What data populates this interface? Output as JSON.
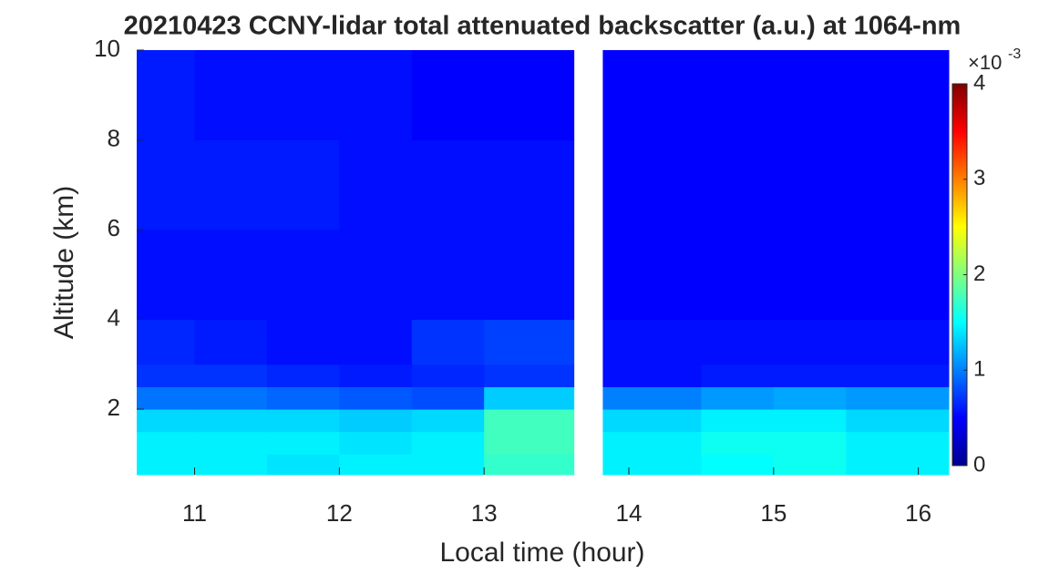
{
  "chart_data": {
    "type": "heatmap",
    "title": "20210423 CCNY-lidar total attenuated backscatter (a.u.) at 1064-nm",
    "xlabel": "Local time (hour)",
    "ylabel": "Altitude (km)",
    "xlim": [
      10.6,
      16.21
    ],
    "ylim": [
      0.54,
      10
    ],
    "xticks": [
      11,
      12,
      13,
      14,
      15,
      16
    ],
    "yticks": [
      2,
      4,
      6,
      8,
      10
    ],
    "x_bins": [
      10.6,
      11,
      11.5,
      12,
      12.5,
      13,
      13.62,
      13.82,
      14.5,
      15,
      15.5,
      16.21
    ],
    "y_bins": [
      0.54,
      1,
      1.5,
      2,
      2.5,
      3,
      4,
      6,
      8,
      10
    ],
    "z": [
      [
        1.45,
        1.45,
        1.4,
        1.45,
        1.45,
        1.7,
        null,
        1.45,
        1.5,
        1.55,
        1.45
      ],
      [
        1.45,
        1.45,
        1.45,
        1.4,
        1.45,
        1.75,
        null,
        1.45,
        1.55,
        1.55,
        1.45
      ],
      [
        1.35,
        1.35,
        1.35,
        1.3,
        1.35,
        1.75,
        null,
        1.35,
        1.45,
        1.45,
        1.35
      ],
      [
        0.95,
        0.95,
        0.9,
        0.85,
        0.8,
        1.3,
        null,
        1.0,
        1.1,
        1.15,
        1.1
      ],
      [
        0.7,
        0.7,
        0.65,
        0.6,
        0.65,
        0.7,
        null,
        0.55,
        0.6,
        0.6,
        0.6
      ],
      [
        0.65,
        0.6,
        0.55,
        0.55,
        0.7,
        0.75,
        null,
        0.55,
        0.55,
        0.55,
        0.55
      ],
      [
        0.55,
        0.55,
        0.55,
        0.55,
        0.55,
        0.55,
        null,
        0.5,
        0.5,
        0.5,
        0.5
      ],
      [
        0.6,
        0.6,
        0.6,
        0.55,
        0.55,
        0.55,
        null,
        0.5,
        0.5,
        0.5,
        0.5
      ],
      [
        0.6,
        0.55,
        0.55,
        0.55,
        0.5,
        0.5,
        null,
        0.5,
        0.5,
        0.5,
        0.5
      ]
    ],
    "clim": [
      0,
      4
    ],
    "cticks": [
      0,
      1,
      2,
      3,
      4
    ],
    "cscale_base": "×10",
    "cscale_exp": "-3",
    "colormap": "jet"
  }
}
